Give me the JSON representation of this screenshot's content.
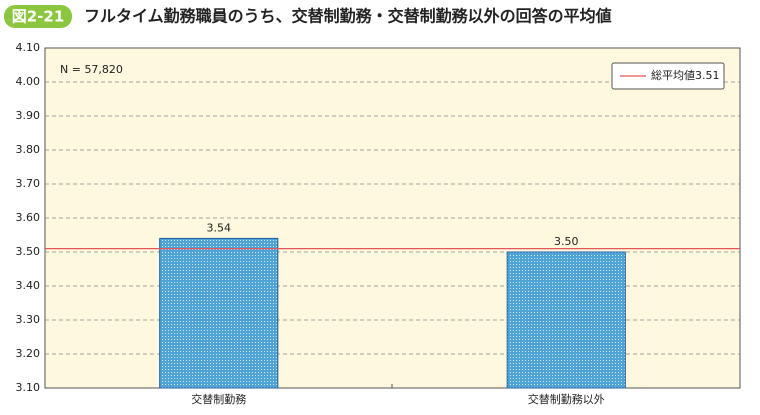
{
  "figure_label": "図2-21",
  "chart_data": {
    "type": "bar",
    "title": "フルタイム勤務職員のうち、交替制勤務・交替制勤務以外の回答の平均値",
    "annotation": "N = 57,820",
    "categories": [
      "交替制勤務",
      "交替制勤務以外"
    ],
    "values": [
      3.54,
      3.5
    ],
    "value_labels": [
      "3.54",
      "3.50"
    ],
    "color": "#4fa3d8",
    "ylim": [
      3.1,
      4.1
    ],
    "yticks": [
      {
        "value": 3.1,
        "label": "3.10"
      },
      {
        "value": 3.2,
        "label": "3.20"
      },
      {
        "value": 3.3,
        "label": "3.30"
      },
      {
        "value": 3.4,
        "label": "3.40"
      },
      {
        "value": 3.5,
        "label": "3.50"
      },
      {
        "value": 3.6,
        "label": "3.60"
      },
      {
        "value": 3.7,
        "label": "3.70"
      },
      {
        "value": 3.8,
        "label": "3.80"
      },
      {
        "value": 3.9,
        "label": "3.90"
      },
      {
        "value": 4,
        "label": "4.00"
      },
      {
        "value": 4.1,
        "label": "4.10"
      }
    ],
    "grid": true,
    "reference_line": {
      "value": 3.51,
      "label": "総平均値3.51",
      "color": "#e2585a"
    },
    "legend": "top-right"
  }
}
